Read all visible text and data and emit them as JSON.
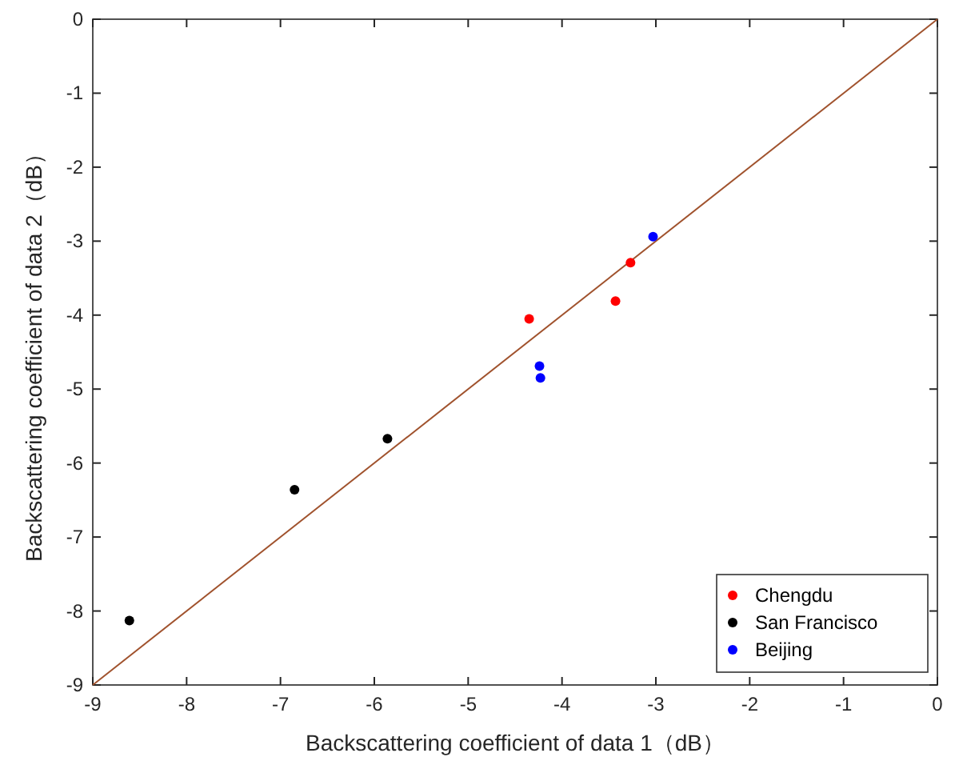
{
  "chart_data": {
    "type": "scatter",
    "xlabel": "Backscattering coefficient of data 1（dB）",
    "ylabel": "Backscattering coefficient of data 2（dB）",
    "xlim": [
      -9,
      0
    ],
    "ylim": [
      -9,
      0
    ],
    "xticks": [
      -9,
      -8,
      -7,
      -6,
      -5,
      -4,
      -3,
      -2,
      -1,
      0
    ],
    "yticks": [
      -9,
      -8,
      -7,
      -6,
      -5,
      -4,
      -3,
      -2,
      -1,
      0
    ],
    "legend": "bottom right",
    "marker": "circle",
    "series": [
      {
        "type": "line",
        "marker": "none",
        "color": "#a0522d",
        "x": [
          -9,
          0
        ],
        "values": [
          -9,
          0
        ]
      },
      {
        "name": "Chengdu",
        "color": "#ff0000",
        "x": [
          -4.35,
          -3.43,
          -3.27
        ],
        "values": [
          -4.05,
          -3.81,
          -3.29
        ]
      },
      {
        "name": "San Francisco",
        "color": "#000000",
        "x": [
          -8.61,
          -6.85,
          -5.86
        ],
        "values": [
          -8.13,
          -6.36,
          -5.67
        ]
      },
      {
        "name": "Beijing",
        "color": "#0000ff",
        "x": [
          -4.24,
          -4.23,
          -3.03
        ],
        "values": [
          -4.69,
          -4.85,
          -2.94
        ]
      }
    ]
  }
}
